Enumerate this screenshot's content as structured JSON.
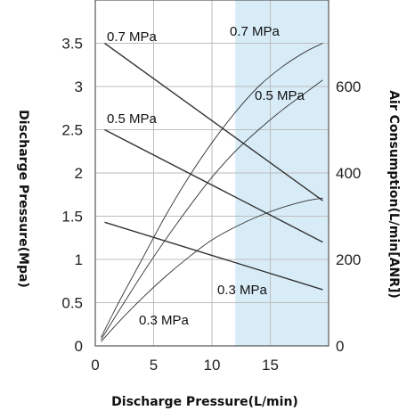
{
  "chart_data": {
    "type": "line",
    "xlabel": "Discharge Pressure(L/min)",
    "ylabel_left": "Discharge Pressure(Mpa)",
    "ylabel_right": "Air Consumption(L/min[ANR])",
    "xlim": [
      0,
      20
    ],
    "ylim_left": [
      0,
      4
    ],
    "ylim_right": [
      0,
      800
    ],
    "xticks": [
      "0",
      "5",
      "10",
      "15"
    ],
    "yticks_left": [
      "0",
      "0.5",
      "1",
      "1.5",
      "2",
      "2.5",
      "3",
      "3.5"
    ],
    "yticks_right": [
      "0",
      "200",
      "400",
      "600"
    ],
    "grid": true,
    "shaded_region": {
      "x_from": 12,
      "x_to": 20,
      "color": "#d8ecf8"
    },
    "pressure_series": [
      {
        "label": "0.7 MPa",
        "x": [
          0.8,
          19.5
        ],
        "y": [
          3.5,
          1.68
        ]
      },
      {
        "label": "0.5 MPa",
        "x": [
          0.8,
          19.5
        ],
        "y": [
          2.5,
          1.2
        ]
      },
      {
        "label": "0.3 MPa",
        "x": [
          0.8,
          19.5
        ],
        "y": [
          1.43,
          0.65
        ]
      }
    ],
    "air_series": [
      {
        "label": "0.7 MPa",
        "x": [
          0.5,
          2,
          4,
          6,
          8,
          10,
          12,
          14,
          16,
          18,
          19.5
        ],
        "y": [
          20,
          100,
          200,
          300,
          390,
          470,
          540,
          600,
          645,
          680,
          700
        ]
      },
      {
        "label": "0.5 MPa",
        "x": [
          0.5,
          2,
          4,
          6,
          8,
          10,
          12,
          14,
          16,
          18,
          19.5
        ],
        "y": [
          15,
          80,
          165,
          245,
          320,
          390,
          450,
          500,
          545,
          585,
          615
        ]
      },
      {
        "label": "0.3 MPa",
        "x": [
          0.5,
          2,
          4,
          6,
          8,
          10,
          12,
          14,
          16,
          18,
          19.5
        ],
        "y": [
          10,
          55,
          110,
          160,
          205,
          245,
          275,
          300,
          320,
          335,
          342
        ]
      }
    ],
    "line_color": "#333333"
  }
}
